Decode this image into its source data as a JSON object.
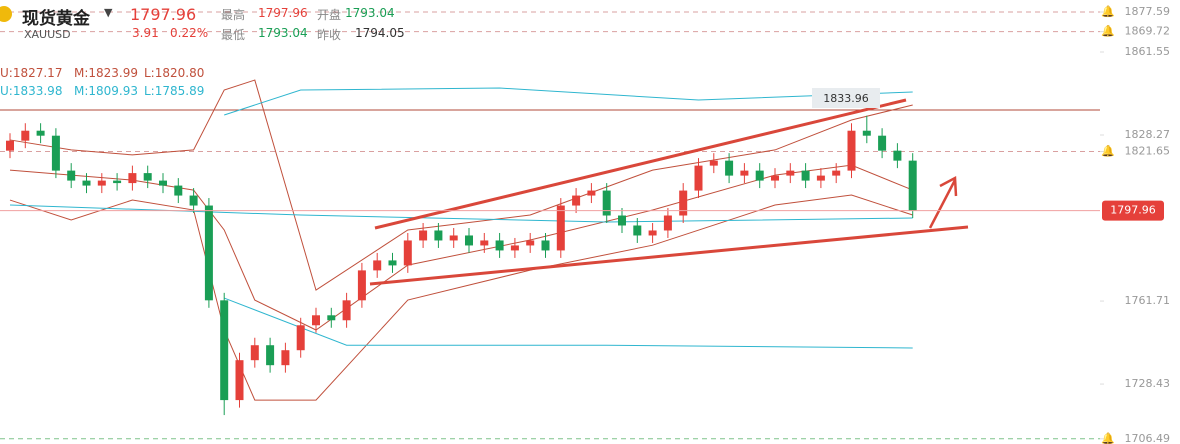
{
  "quote": {
    "name": "现货黄金",
    "symbol": "XAUUSD",
    "price": 1797.96,
    "change": 3.91,
    "change_pct": "0.22%",
    "high_label": "最高",
    "high": 1797.96,
    "open_label": "开盘",
    "open": 1793.04,
    "low_label": "最低",
    "low": 1793.04,
    "prev_close_label": "昨收",
    "prev_close": 1794.05
  },
  "indicators": [
    {
      "color": "#c0503c",
      "texts": [
        "U:1827.17",
        "M:1823.99",
        "L:1820.80"
      ]
    },
    {
      "color": "#2fb6cf",
      "texts": [
        "U:1833.98",
        "M:1809.93",
        "L:1785.89"
      ]
    }
  ],
  "chart_data": {
    "type": "candlestick",
    "up_color": "#e5403a",
    "down_color": "#1a9e55",
    "ylim": [
      1704.4,
      1882.4
    ],
    "yticks": [
      1877.59,
      1869.72,
      1861.55,
      1828.27,
      1821.65,
      1761.71,
      1728.43,
      1706.49
    ],
    "alerts": [
      1877.59,
      1869.72,
      1821.65,
      1706.49
    ],
    "last_price": 1797.96,
    "annotation": "1833.96",
    "open": [
      1822,
      1826,
      1830,
      1828,
      1814,
      1810,
      1808,
      1810,
      1809,
      1813,
      1810,
      1808,
      1804,
      1800,
      1762,
      1722,
      1738,
      1744,
      1736,
      1742,
      1752,
      1756,
      1754,
      1762,
      1774,
      1778,
      1776,
      1786,
      1790,
      1786,
      1788,
      1784,
      1786,
      1782,
      1784,
      1786,
      1782,
      1800,
      1804,
      1806,
      1796,
      1792,
      1788,
      1790,
      1796,
      1806,
      1816,
      1818,
      1812,
      1814,
      1810,
      1812,
      1814,
      1810,
      1812,
      1814,
      1830,
      1828,
      1822,
      1818
    ],
    "high": [
      1829,
      1833,
      1833,
      1831,
      1817,
      1813,
      1813,
      1813,
      1816,
      1816,
      1813,
      1811,
      1807,
      1803,
      1765,
      1741,
      1747,
      1747,
      1745,
      1755,
      1759,
      1759,
      1765,
      1777,
      1781,
      1781,
      1789,
      1793,
      1793,
      1791,
      1791,
      1789,
      1789,
      1787,
      1789,
      1789,
      1803,
      1807,
      1809,
      1809,
      1799,
      1795,
      1793,
      1799,
      1809,
      1819,
      1821,
      1821,
      1817,
      1817,
      1815,
      1817,
      1817,
      1815,
      1817,
      1833,
      1836,
      1831,
      1825,
      1821
    ],
    "low": [
      1819,
      1823,
      1825,
      1811,
      1807,
      1805,
      1805,
      1806,
      1806,
      1807,
      1805,
      1801,
      1797,
      1759,
      1716,
      1719,
      1735,
      1733,
      1733,
      1739,
      1749,
      1751,
      1751,
      1759,
      1771,
      1773,
      1773,
      1783,
      1783,
      1783,
      1781,
      1781,
      1779,
      1779,
      1781,
      1779,
      1779,
      1797,
      1801,
      1793,
      1789,
      1785,
      1785,
      1787,
      1793,
      1803,
      1813,
      1809,
      1809,
      1807,
      1807,
      1809,
      1807,
      1807,
      1809,
      1811,
      1825,
      1819,
      1815,
      1795
    ],
    "close": [
      1826,
      1830,
      1828,
      1814,
      1810,
      1808,
      1810,
      1809,
      1813,
      1810,
      1808,
      1804,
      1800,
      1762,
      1722,
      1738,
      1744,
      1736,
      1742,
      1752,
      1756,
      1754,
      1762,
      1774,
      1778,
      1776,
      1786,
      1790,
      1786,
      1788,
      1784,
      1786,
      1782,
      1784,
      1786,
      1782,
      1800,
      1804,
      1806,
      1796,
      1792,
      1788,
      1790,
      1796,
      1806,
      1816,
      1818,
      1812,
      1814,
      1810,
      1812,
      1814,
      1810,
      1812,
      1814,
      1830,
      1828,
      1822,
      1818,
      1797.96
    ],
    "lines": [
      {
        "color": "#c0503c",
        "x": [
          0,
          4,
          8,
          12,
          14,
          16,
          20,
          26,
          34,
          42,
          50,
          55,
          59
        ],
        "values": [
          1826.3,
          1822.3,
          1820.3,
          1822.3,
          1846.3,
          1850.3,
          1766.1,
          1790.2,
          1796.2,
          1814.2,
          1822.3,
          1834.3,
          1840.3
        ]
      },
      {
        "color": "#c0503c",
        "x": [
          0,
          4,
          8,
          12,
          14,
          16,
          20,
          26,
          34,
          42,
          50,
          55,
          59
        ],
        "values": [
          1814.2,
          1812.2,
          1810.2,
          1806.2,
          1790.2,
          1762.1,
          1750.1,
          1776.1,
          1786.2,
          1798.2,
          1812.2,
          1816.2,
          1806.2
        ]
      },
      {
        "color": "#c0503c",
        "x": [
          0,
          4,
          8,
          12,
          14,
          16,
          20,
          26,
          34,
          42,
          50,
          55,
          59
        ],
        "values": [
          1802.2,
          1794.2,
          1802.2,
          1798.2,
          1750.1,
          1722,
          1722,
          1762.1,
          1774.1,
          1784.1,
          1800.2,
          1804.2,
          1796.2
        ]
      },
      {
        "color": "#2fb6cf",
        "x": [
          14,
          19,
          32,
          45,
          59
        ],
        "values": [
          1836.3,
          1846.3,
          1847.1,
          1842.3,
          1845.5
        ]
      },
      {
        "color": "#2fb6cf",
        "x": [
          0,
          19,
          39,
          59
        ],
        "values": [
          1800.2,
          1796.2,
          1793.4,
          1795
        ]
      },
      {
        "color": "#2fb6cf",
        "x": [
          14,
          22,
          39,
          59
        ],
        "values": [
          1762.9,
          1744,
          1744,
          1742.9
        ]
      }
    ]
  }
}
